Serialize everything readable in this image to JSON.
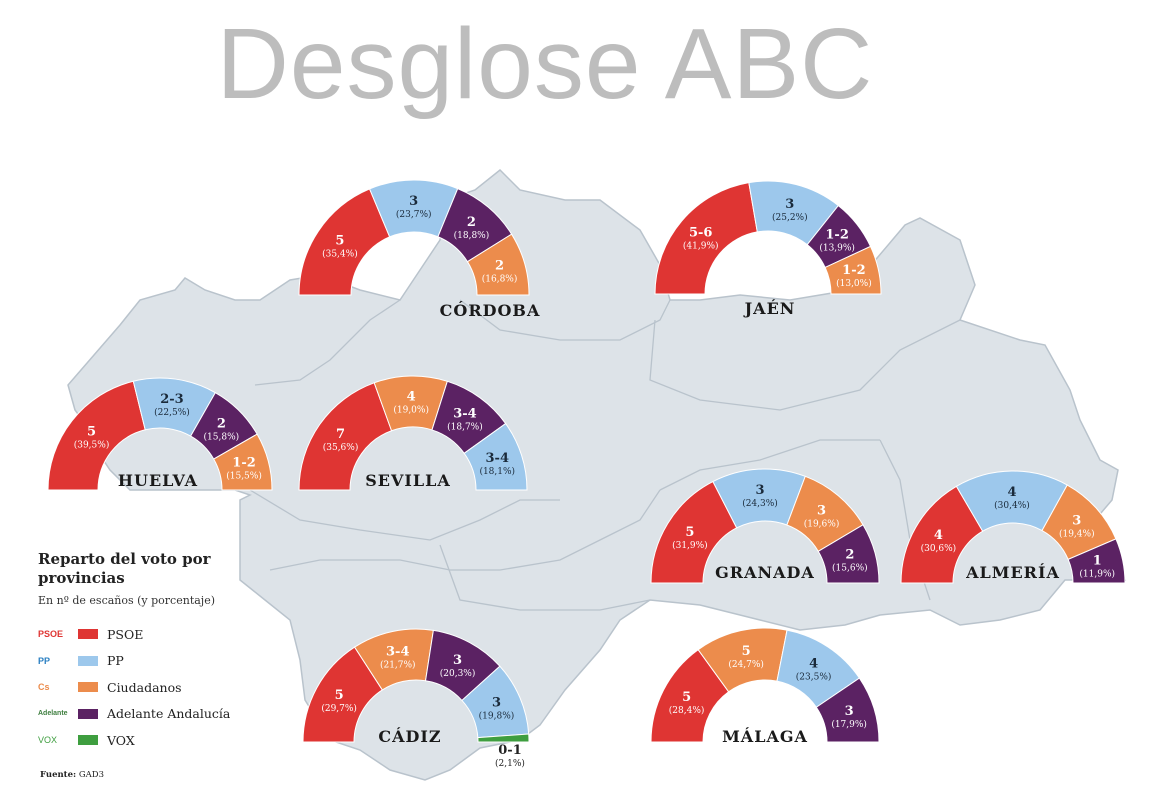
{
  "header": {
    "title": "Desglose ABC"
  },
  "legend": {
    "title": "Reparto del voto por provincias",
    "subtitle": "En nº de escaños (y porcentaje)",
    "items": [
      {
        "logo": "PSOE",
        "label": "PSOE",
        "color": "#df3533"
      },
      {
        "logo": "PP",
        "label": "PP",
        "color": "#9dc8ec"
      },
      {
        "logo": "Cs",
        "label": "Ciudadanos",
        "color": "#ec8c4c"
      },
      {
        "logo": "Adelante",
        "label": "Adelante Andalucía",
        "color": "#5b2263"
      },
      {
        "logo": "VOX",
        "label": "VOX",
        "color": "#3e9e3f"
      }
    ]
  },
  "source": {
    "label": "Fuente:",
    "value": "GAD3"
  },
  "map": {
    "fill": "#dde3e8",
    "stroke": "#b9c3cc"
  },
  "chart_data": [
    {
      "type": "half-donut",
      "province": "CÓRDOBA",
      "segments": [
        {
          "party": "PSOE",
          "seats": "5",
          "percent": 35.4,
          "percent_label": "(35,4%)"
        },
        {
          "party": "PP",
          "seats": "3",
          "percent": 23.7,
          "percent_label": "(23,7%)"
        },
        {
          "party": "Adelante Andalucía",
          "seats": "2",
          "percent": 18.8,
          "percent_label": "(18,8%)"
        },
        {
          "party": "Ciudadanos",
          "seats": "2",
          "percent": 16.8,
          "percent_label": "(16,8%)"
        }
      ]
    },
    {
      "type": "half-donut",
      "province": "JAÉN",
      "segments": [
        {
          "party": "PSOE",
          "seats": "5-6",
          "percent": 41.9,
          "percent_label": "(41,9%)"
        },
        {
          "party": "PP",
          "seats": "3",
          "percent": 25.2,
          "percent_label": "(25,2%)"
        },
        {
          "party": "Adelante Andalucía",
          "seats": "1-2",
          "percent": 13.9,
          "percent_label": "(13,9%)"
        },
        {
          "party": "Ciudadanos",
          "seats": "1-2",
          "percent": 13.0,
          "percent_label": "(13,0%)"
        }
      ]
    },
    {
      "type": "half-donut",
      "province": "HUELVA",
      "segments": [
        {
          "party": "PSOE",
          "seats": "5",
          "percent": 39.5,
          "percent_label": "(39,5%)"
        },
        {
          "party": "PP",
          "seats": "2-3",
          "percent": 22.5,
          "percent_label": "(22,5%)"
        },
        {
          "party": "Adelante Andalucía",
          "seats": "2",
          "percent": 15.8,
          "percent_label": "(15,8%)"
        },
        {
          "party": "Ciudadanos",
          "seats": "1-2",
          "percent": 15.5,
          "percent_label": "(15,5%)"
        }
      ]
    },
    {
      "type": "half-donut",
      "province": "SEVILLA",
      "segments": [
        {
          "party": "PSOE",
          "seats": "7",
          "percent": 35.6,
          "percent_label": "(35,6%)"
        },
        {
          "party": "Ciudadanos",
          "seats": "4",
          "percent": 19.0,
          "percent_label": "(19,0%)"
        },
        {
          "party": "Adelante Andalucía",
          "seats": "3-4",
          "percent": 18.7,
          "percent_label": "(18,7%)"
        },
        {
          "party": "PP",
          "seats": "3-4",
          "percent": 18.1,
          "percent_label": "(18,1%)"
        }
      ]
    },
    {
      "type": "half-donut",
      "province": "GRANADA",
      "segments": [
        {
          "party": "PSOE",
          "seats": "5",
          "percent": 31.9,
          "percent_label": "(31,9%)"
        },
        {
          "party": "PP",
          "seats": "3",
          "percent": 24.3,
          "percent_label": "(24,3%)"
        },
        {
          "party": "Ciudadanos",
          "seats": "3",
          "percent": 19.6,
          "percent_label": "(19,6%)"
        },
        {
          "party": "Adelante Andalucía",
          "seats": "2",
          "percent": 15.6,
          "percent_label": "(15,6%)"
        }
      ]
    },
    {
      "type": "half-donut",
      "province": "ALMERÍA",
      "segments": [
        {
          "party": "PSOE",
          "seats": "4",
          "percent": 30.6,
          "percent_label": "(30,6%)"
        },
        {
          "party": "PP",
          "seats": "4",
          "percent": 30.4,
          "percent_label": "(30,4%)"
        },
        {
          "party": "Ciudadanos",
          "seats": "3",
          "percent": 19.4,
          "percent_label": "(19,4%)"
        },
        {
          "party": "Adelante Andalucía",
          "seats": "1",
          "percent": 11.9,
          "percent_label": "(11,9%)"
        }
      ]
    },
    {
      "type": "half-donut",
      "province": "CÁDIZ",
      "segments": [
        {
          "party": "PSOE",
          "seats": "5",
          "percent": 29.7,
          "percent_label": "(29,7%)"
        },
        {
          "party": "Ciudadanos",
          "seats": "3-4",
          "percent": 21.7,
          "percent_label": "(21,7%)"
        },
        {
          "party": "Adelante Andalucía",
          "seats": "3",
          "percent": 20.3,
          "percent_label": "(20,3%)"
        },
        {
          "party": "PP",
          "seats": "3",
          "percent": 19.8,
          "percent_label": "(19,8%)"
        },
        {
          "party": "VOX",
          "seats": "0-1",
          "percent": 2.1,
          "percent_label": "(2,1%)"
        }
      ]
    },
    {
      "type": "half-donut",
      "province": "MÁLAGA",
      "segments": [
        {
          "party": "PSOE",
          "seats": "5",
          "percent": 28.4,
          "percent_label": "(28,4%)"
        },
        {
          "party": "Ciudadanos",
          "seats": "5",
          "percent": 24.7,
          "percent_label": "(24,7%)"
        },
        {
          "party": "PP",
          "seats": "4",
          "percent": 23.5,
          "percent_label": "(23,5%)"
        },
        {
          "party": "Adelante Andalucía",
          "seats": "3",
          "percent": 17.9,
          "percent_label": "(17,9%)"
        }
      ]
    }
  ]
}
